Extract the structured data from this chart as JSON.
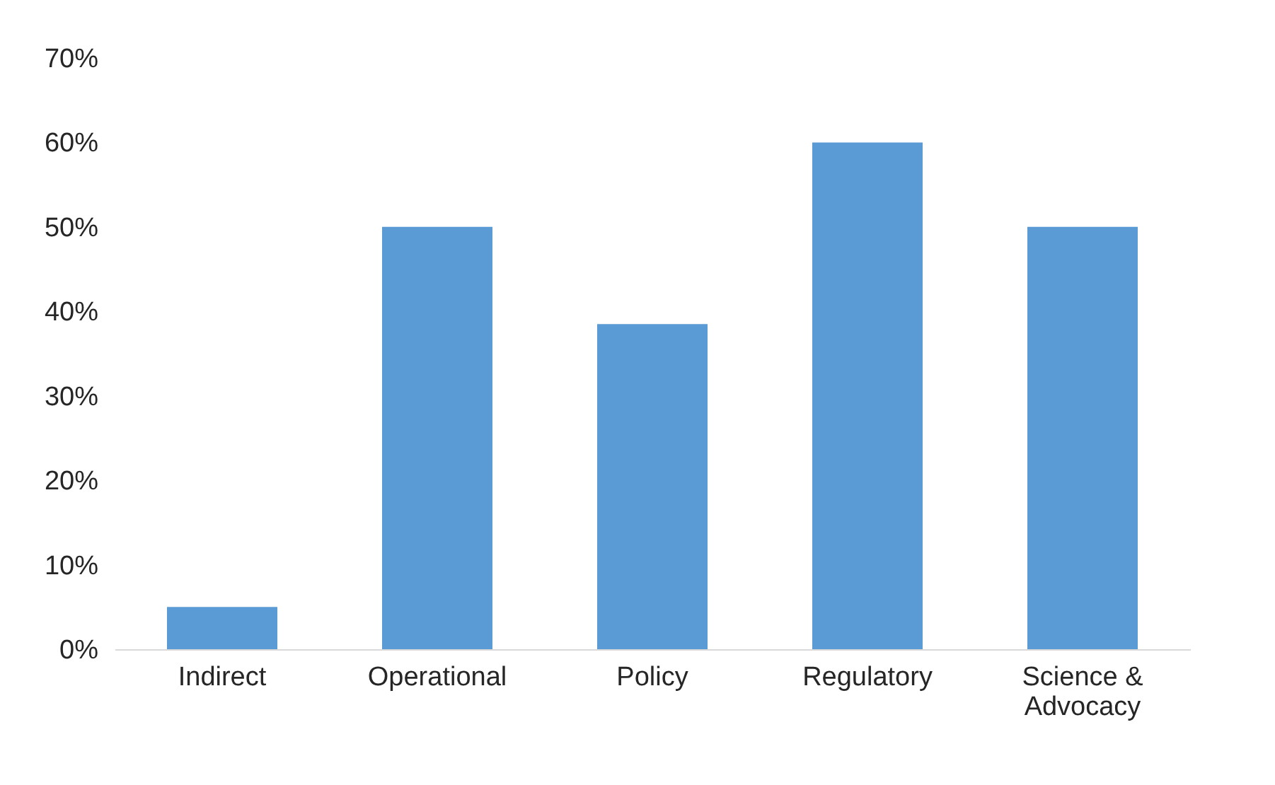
{
  "chart_data": {
    "type": "bar",
    "categories": [
      "Indirect",
      "Operational",
      "Policy",
      "Regulatory",
      "Science & Advocacy"
    ],
    "values": [
      5,
      50,
      38.5,
      60,
      50
    ],
    "color": "#5b9bd5",
    "ylim": [
      0,
      70
    ],
    "yticks": [
      {
        "value": 0,
        "label": "0%"
      },
      {
        "value": 10,
        "label": "10%"
      },
      {
        "value": 20,
        "label": "20%"
      },
      {
        "value": 30,
        "label": "30%"
      },
      {
        "value": 40,
        "label": "40%"
      },
      {
        "value": 50,
        "label": "50%"
      },
      {
        "value": 60,
        "label": "60%"
      },
      {
        "value": 70,
        "label": "70%"
      }
    ],
    "grid": false
  }
}
